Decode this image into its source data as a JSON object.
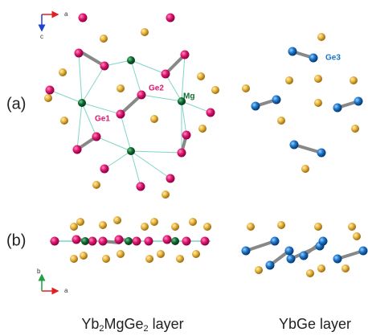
{
  "axes_top": {
    "x_label": "a",
    "y_label": "c"
  },
  "axes_bottom": {
    "x_label": "a",
    "y_label": "b"
  },
  "panels": [
    {
      "label": "(a)"
    },
    {
      "label": "(b)"
    }
  ],
  "atom_labels": {
    "ge1": "Ge1",
    "ge2": "Ge2",
    "mg": "Mg",
    "ge3": "Ge3"
  },
  "captions": [
    {
      "formula_parts": [
        "Yb",
        "2",
        "MgGe",
        "2",
        " layer"
      ]
    },
    {
      "text": "YbGe layer"
    }
  ]
}
